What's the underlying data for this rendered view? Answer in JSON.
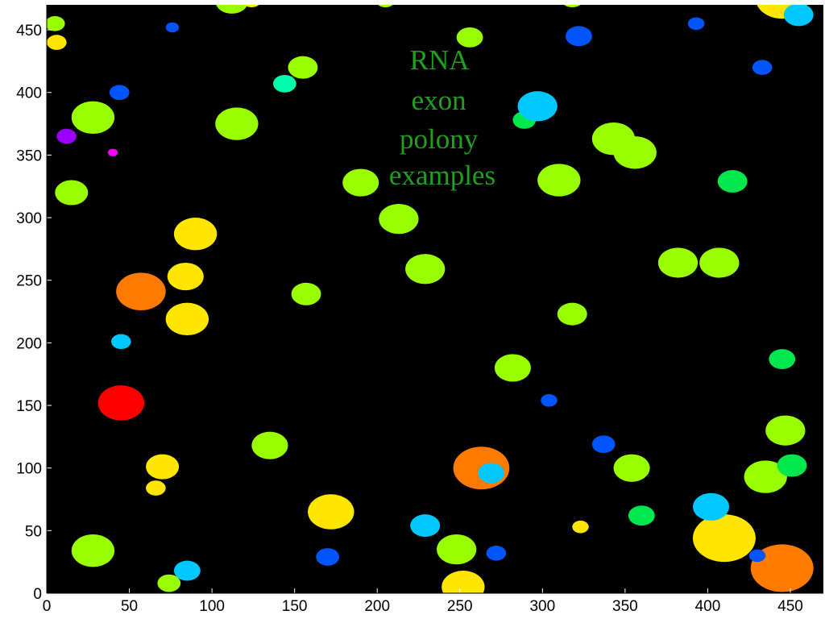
{
  "chart_data": {
    "type": "scatter",
    "title": "",
    "xlabel": "",
    "ylabel": "",
    "xlim": [
      0,
      470
    ],
    "ylim": [
      0,
      470
    ],
    "x_ticks": [
      0,
      50,
      100,
      150,
      200,
      250,
      300,
      350,
      400,
      450
    ],
    "y_ticks": [
      0,
      50,
      100,
      150,
      200,
      250,
      300,
      350,
      400,
      450
    ],
    "background": "#000000",
    "grid": false,
    "annotation": [
      "RNA",
      "exon",
      "polony",
      "examples"
    ],
    "annotation_color": "#1fa01f",
    "colors": {
      "chartreuse": "#99ff00",
      "yellow": "#ffe600",
      "orange": "#ff7a00",
      "red": "#ff0000",
      "cyan": "#00c8ff",
      "blue": "#0055ff",
      "green": "#00e64d",
      "teal": "#00ffaa",
      "violet": "#9900ff",
      "magenta": "#ff00ff"
    },
    "points": [
      {
        "x": 45,
        "y": 152,
        "r": 14,
        "c": "red"
      },
      {
        "x": 57,
        "y": 241,
        "r": 15,
        "c": "orange"
      },
      {
        "x": 445,
        "y": 20,
        "r": 19,
        "c": "orange"
      },
      {
        "x": 263,
        "y": 100,
        "r": 17,
        "c": "orange"
      },
      {
        "x": 90,
        "y": 287,
        "r": 13,
        "c": "yellow"
      },
      {
        "x": 84,
        "y": 253,
        "r": 11,
        "c": "yellow"
      },
      {
        "x": 85,
        "y": 219,
        "r": 13,
        "c": "yellow"
      },
      {
        "x": 70,
        "y": 101,
        "r": 10,
        "c": "yellow"
      },
      {
        "x": 66,
        "y": 84,
        "r": 6,
        "c": "yellow"
      },
      {
        "x": 172,
        "y": 65,
        "r": 14,
        "c": "yellow"
      },
      {
        "x": 410,
        "y": 44,
        "r": 19,
        "c": "yellow"
      },
      {
        "x": 323,
        "y": 53,
        "r": 5,
        "c": "yellow"
      },
      {
        "x": 252,
        "y": 5,
        "r": 13,
        "c": "yellow"
      },
      {
        "x": 445,
        "y": 475,
        "r": 16,
        "c": "yellow"
      },
      {
        "x": 6,
        "y": 440,
        "r": 6,
        "c": "yellow"
      },
      {
        "x": 28,
        "y": 380,
        "r": 13,
        "c": "chartreuse"
      },
      {
        "x": 115,
        "y": 375,
        "r": 13,
        "c": "chartreuse"
      },
      {
        "x": 15,
        "y": 320,
        "r": 10,
        "c": "chartreuse"
      },
      {
        "x": 190,
        "y": 328,
        "r": 11,
        "c": "chartreuse"
      },
      {
        "x": 213,
        "y": 299,
        "r": 12,
        "c": "chartreuse"
      },
      {
        "x": 229,
        "y": 259,
        "r": 12,
        "c": "chartreuse"
      },
      {
        "x": 157,
        "y": 239,
        "r": 9,
        "c": "chartreuse"
      },
      {
        "x": 155,
        "y": 420,
        "r": 9,
        "c": "chartreuse"
      },
      {
        "x": 256,
        "y": 444,
        "r": 8,
        "c": "chartreuse"
      },
      {
        "x": 310,
        "y": 330,
        "r": 13,
        "c": "chartreuse"
      },
      {
        "x": 343,
        "y": 363,
        "r": 13,
        "c": "chartreuse"
      },
      {
        "x": 356,
        "y": 352,
        "r": 13,
        "c": "chartreuse"
      },
      {
        "x": 382,
        "y": 264,
        "r": 12,
        "c": "chartreuse"
      },
      {
        "x": 407,
        "y": 264,
        "r": 12,
        "c": "chartreuse"
      },
      {
        "x": 318,
        "y": 223,
        "r": 9,
        "c": "chartreuse"
      },
      {
        "x": 282,
        "y": 180,
        "r": 11,
        "c": "chartreuse"
      },
      {
        "x": 135,
        "y": 118,
        "r": 11,
        "c": "chartreuse"
      },
      {
        "x": 354,
        "y": 100,
        "r": 11,
        "c": "chartreuse"
      },
      {
        "x": 447,
        "y": 130,
        "r": 12,
        "c": "chartreuse"
      },
      {
        "x": 435,
        "y": 93,
        "r": 13,
        "c": "chartreuse"
      },
      {
        "x": 28,
        "y": 34,
        "r": 13,
        "c": "chartreuse"
      },
      {
        "x": 248,
        "y": 35,
        "r": 12,
        "c": "chartreuse"
      },
      {
        "x": 74,
        "y": 8,
        "r": 7,
        "c": "chartreuse"
      },
      {
        "x": 5,
        "y": 455,
        "r": 6,
        "c": "chartreuse"
      },
      {
        "x": 112,
        "y": 473,
        "r": 10,
        "c": "chartreuse"
      },
      {
        "x": 318,
        "y": 475,
        "r": 7,
        "c": "chartreuse"
      },
      {
        "x": 205,
        "y": 474,
        "r": 6,
        "c": "chartreuse"
      },
      {
        "x": 124,
        "y": 474,
        "r": 6,
        "c": "yellow"
      },
      {
        "x": 451,
        "y": 102,
        "r": 9,
        "c": "green"
      },
      {
        "x": 415,
        "y": 329,
        "r": 9,
        "c": "green"
      },
      {
        "x": 445,
        "y": 187,
        "r": 8,
        "c": "green"
      },
      {
        "x": 360,
        "y": 62,
        "r": 8,
        "c": "green"
      },
      {
        "x": 289,
        "y": 378,
        "r": 7,
        "c": "green"
      },
      {
        "x": 144,
        "y": 407,
        "r": 7,
        "c": "teal"
      },
      {
        "x": 297,
        "y": 389,
        "r": 12,
        "c": "cyan"
      },
      {
        "x": 45,
        "y": 201,
        "r": 6,
        "c": "cyan"
      },
      {
        "x": 85,
        "y": 18,
        "r": 8,
        "c": "cyan"
      },
      {
        "x": 229,
        "y": 54,
        "r": 9,
        "c": "cyan"
      },
      {
        "x": 269,
        "y": 96,
        "r": 8,
        "c": "cyan"
      },
      {
        "x": 402,
        "y": 69,
        "r": 11,
        "c": "cyan"
      },
      {
        "x": 455,
        "y": 462,
        "r": 9,
        "c": "cyan"
      },
      {
        "x": 44,
        "y": 400,
        "r": 6,
        "c": "blue"
      },
      {
        "x": 322,
        "y": 445,
        "r": 8,
        "c": "blue"
      },
      {
        "x": 433,
        "y": 420,
        "r": 6,
        "c": "blue"
      },
      {
        "x": 393,
        "y": 455,
        "r": 5,
        "c": "blue"
      },
      {
        "x": 76,
        "y": 452,
        "r": 4,
        "c": "blue"
      },
      {
        "x": 304,
        "y": 154,
        "r": 5,
        "c": "blue"
      },
      {
        "x": 337,
        "y": 119,
        "r": 7,
        "c": "blue"
      },
      {
        "x": 170,
        "y": 29,
        "r": 7,
        "c": "blue"
      },
      {
        "x": 272,
        "y": 32,
        "r": 6,
        "c": "blue"
      },
      {
        "x": 430,
        "y": 30,
        "r": 5,
        "c": "blue"
      },
      {
        "x": 12,
        "y": 365,
        "r": 6,
        "c": "violet"
      },
      {
        "x": 40,
        "y": 352,
        "r": 3,
        "c": "magenta"
      }
    ]
  }
}
